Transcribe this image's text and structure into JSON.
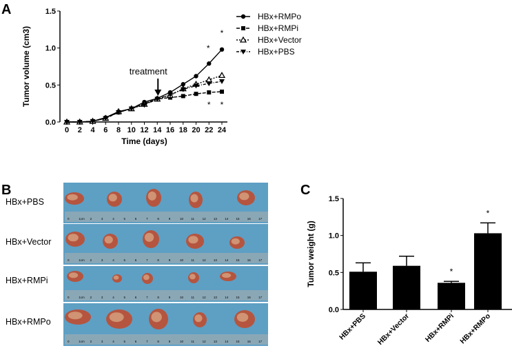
{
  "panels": {
    "a": "A",
    "b": "B",
    "c": "C"
  },
  "chart_data": [
    {
      "type": "line",
      "panel": "A",
      "xlabel": "Time (days)",
      "ylabel": "Tumor volume (cm3)",
      "x": [
        0,
        2,
        4,
        6,
        8,
        10,
        12,
        14,
        16,
        18,
        20,
        22,
        24
      ],
      "xticks": [
        "0",
        "2",
        "4",
        "6",
        "8",
        "10",
        "12",
        "14",
        "16",
        "18",
        "20",
        "22",
        "24"
      ],
      "yticks": [
        "0.0",
        "0.5",
        "1.0",
        "1.5"
      ],
      "xlim": [
        0,
        24
      ],
      "ylim": [
        0,
        1.5
      ],
      "legend_position": "right",
      "annotation": {
        "text": "treatment",
        "x": 14
      },
      "significance": [
        {
          "x": 22,
          "above": "*",
          "below": "*"
        },
        {
          "x": 24,
          "above": "*",
          "below": "*"
        }
      ],
      "series": [
        {
          "name": "HBx+RMPo",
          "marker": "circle",
          "line": "solid",
          "values": [
            0,
            0,
            0.01,
            0.06,
            0.14,
            0.18,
            0.27,
            0.32,
            0.4,
            0.51,
            0.62,
            0.79,
            0.98
          ]
        },
        {
          "name": "HBx+RMPi",
          "marker": "square",
          "line": "dashed",
          "values": [
            0,
            0,
            0.01,
            0.05,
            0.13,
            0.18,
            0.25,
            0.31,
            0.33,
            0.35,
            0.38,
            0.4,
            0.41
          ]
        },
        {
          "name": "HBx+Vector",
          "marker": "triangle-open",
          "line": "dotted",
          "values": [
            0,
            0,
            0.01,
            0.05,
            0.14,
            0.18,
            0.24,
            0.31,
            0.36,
            0.45,
            0.51,
            0.57,
            0.63
          ]
        },
        {
          "name": "HBx+PBS",
          "marker": "triangle-down",
          "line": "dashdot",
          "values": [
            0,
            0,
            0.01,
            0.05,
            0.13,
            0.18,
            0.23,
            0.31,
            0.37,
            0.44,
            0.49,
            0.52,
            0.55
          ]
        }
      ]
    },
    {
      "type": "bar",
      "panel": "C",
      "ylabel": "Tumor weight (g)",
      "categories": [
        "HBx+PBS",
        "HBx+Vector",
        "HBx+RMPi",
        "HBx+RMPo"
      ],
      "values": [
        0.51,
        0.59,
        0.36,
        1.03
      ],
      "errors": [
        0.12,
        0.13,
        0.02,
        0.14
      ],
      "significance": [
        "",
        "",
        "*",
        "*"
      ],
      "yticks": [
        "0.0",
        "0.5",
        "1.0",
        "1.5"
      ],
      "ylim": [
        0,
        1.5
      ],
      "color": "#000000"
    }
  ],
  "photo": {
    "rows": [
      "HBx+PBS",
      "HBx+Vector",
      "HBx+RMPi",
      "HBx+RMPo"
    ],
    "ruler_labels": [
      "0",
      "1cm",
      "2",
      "3",
      "4",
      "5",
      "6",
      "7",
      "8",
      "9",
      "10",
      "11",
      "12",
      "13",
      "14",
      "15",
      "16",
      "17"
    ],
    "background_color": "#5e9fc4",
    "tumor_color": "#b5553f"
  }
}
